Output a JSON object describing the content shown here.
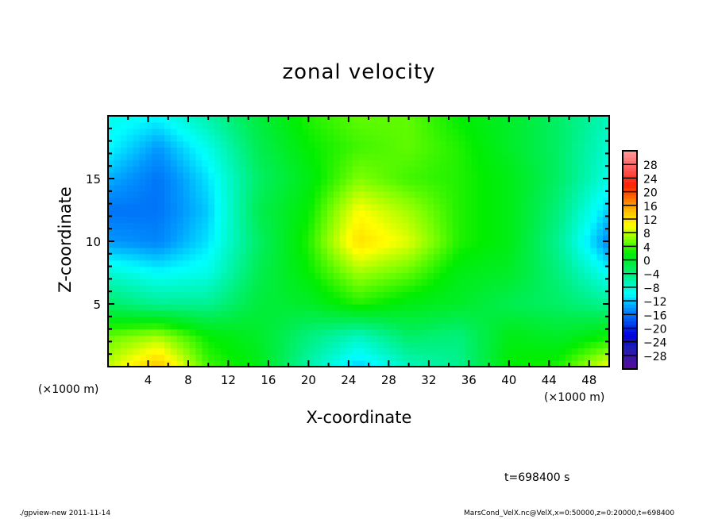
{
  "chart_data": {
    "type": "heatmap",
    "title": "zonal velocity",
    "xlabel": "X-coordinate",
    "ylabel": "Z-coordinate",
    "x_unit_label": "(×1000 m)",
    "xlim": [
      0,
      50
    ],
    "ylim": [
      0,
      20
    ],
    "xticks": [
      4,
      8,
      12,
      16,
      20,
      24,
      28,
      32,
      36,
      40,
      44,
      48
    ],
    "yticks": [
      5,
      10,
      15
    ],
    "x_minor_step": 2,
    "y_minor_step": 1,
    "grid_x": [
      0,
      5,
      10,
      15,
      20,
      25,
      30,
      35,
      40,
      45,
      50
    ],
    "grid_z": [
      20,
      17.5,
      15,
      12.5,
      10,
      7.5,
      5,
      2.5,
      0
    ],
    "values": [
      [
        -9,
        -10,
        -6,
        -1,
        3,
        5,
        5,
        2,
        0,
        -3,
        -7
      ],
      [
        -10,
        -14,
        -9,
        -2,
        2,
        4,
        5,
        3,
        0,
        -3,
        -8
      ],
      [
        -13,
        -16,
        -11,
        -3,
        1,
        6,
        4,
        3,
        1,
        -3,
        -9
      ],
      [
        -16,
        -16,
        -12,
        -2,
        2,
        10,
        7,
        3,
        1,
        -4,
        -12
      ],
      [
        -14,
        -15,
        -11,
        -3,
        3,
        12,
        9,
        3,
        1,
        -5,
        -15
      ],
      [
        -8,
        -10,
        -9,
        -2,
        2,
        7,
        5,
        1,
        0,
        -4,
        -10
      ],
      [
        -3,
        -5,
        -5,
        -1,
        0,
        3,
        1,
        0,
        -2,
        -3,
        -5
      ],
      [
        5,
        7,
        2,
        0,
        -4,
        -7,
        -3,
        -4,
        1,
        0,
        2
      ],
      [
        8,
        14,
        4,
        1,
        -6,
        -12,
        -7,
        -5,
        2,
        3,
        10
      ]
    ],
    "colorbar": {
      "levels": [
        -28,
        -24,
        -20,
        -16,
        -12,
        -8,
        -4,
        0,
        4,
        8,
        12,
        16,
        20,
        24,
        28
      ],
      "range": [
        -32,
        32
      ],
      "placement": "right"
    },
    "colormap": [
      {
        "v": -32,
        "c": "#5a0a9a"
      },
      {
        "v": -26,
        "c": "#2020b0"
      },
      {
        "v": -22,
        "c": "#0000e0"
      },
      {
        "v": -18,
        "c": "#0050f0"
      },
      {
        "v": -14,
        "c": "#0098ff"
      },
      {
        "v": -10,
        "c": "#00ffff"
      },
      {
        "v": -6,
        "c": "#00f4a8"
      },
      {
        "v": -2,
        "c": "#00ee50"
      },
      {
        "v": 2,
        "c": "#00ee00"
      },
      {
        "v": 6,
        "c": "#80ff00"
      },
      {
        "v": 10,
        "c": "#ffff00"
      },
      {
        "v": 14,
        "c": "#ffc400"
      },
      {
        "v": 18,
        "c": "#ff7000"
      },
      {
        "v": 22,
        "c": "#ff2000"
      },
      {
        "v": 26,
        "c": "#ff5050"
      },
      {
        "v": 32,
        "c": "#ff9a9a"
      }
    ]
  },
  "annotations": {
    "time": "t=698400 s",
    "footer_left": "./gpview-new  2011-11-14",
    "footer_right": "MarsCond_VelX.nc@VelX,x=0:50000,z=0:20000,t=698400"
  }
}
